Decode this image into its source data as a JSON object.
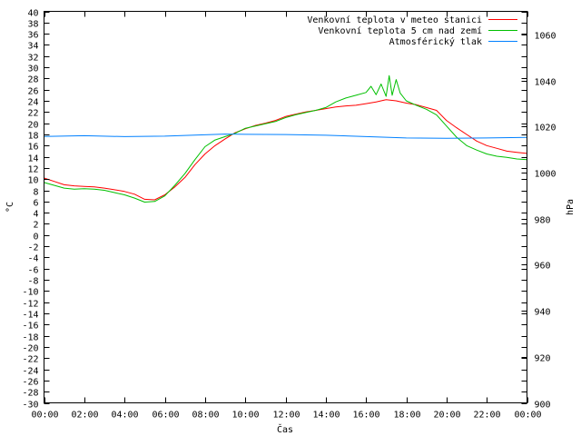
{
  "chart_data": {
    "type": "line",
    "xlabel": "Čas",
    "ylabel": "°C",
    "y2label": "hPa",
    "x_ticks": [
      "00:00",
      "02:00",
      "04:00",
      "06:00",
      "08:00",
      "10:00",
      "12:00",
      "14:00",
      "16:00",
      "18:00",
      "20:00",
      "22:00",
      "00:00"
    ],
    "xlim_hours": [
      0,
      24
    ],
    "ylim": [
      -30,
      40
    ],
    "y_tick_step": 2,
    "y2lim": [
      900,
      1070
    ],
    "y2_ticks": [
      900,
      920,
      940,
      960,
      980,
      1000,
      1020,
      1040,
      1060
    ],
    "legend_position": "top-right",
    "series": [
      {
        "name": "Venkovní teplota v meteo stanici",
        "color": "#ff0000",
        "axis": "left",
        "x": [
          0,
          0.5,
          1,
          1.5,
          2,
          2.5,
          3,
          3.5,
          4,
          4.5,
          5,
          5.5,
          6,
          6.5,
          7,
          7.5,
          8,
          8.5,
          9,
          9.5,
          10,
          10.5,
          11,
          11.5,
          12,
          12.5,
          13,
          13.5,
          14,
          14.5,
          15,
          15.5,
          16,
          16.5,
          17,
          17.5,
          18,
          18.5,
          19,
          19.5,
          20,
          20.5,
          21,
          21.5,
          22,
          22.5,
          23,
          23.5,
          24
        ],
        "values": [
          10.2,
          9.6,
          9.0,
          8.8,
          8.7,
          8.6,
          8.4,
          8.1,
          7.8,
          7.3,
          6.4,
          6.3,
          7.2,
          8.6,
          10.3,
          12.6,
          14.5,
          16.0,
          17.2,
          18.3,
          19.0,
          19.6,
          20.0,
          20.5,
          21.2,
          21.6,
          22.0,
          22.3,
          22.6,
          22.9,
          23.1,
          23.2,
          23.5,
          23.8,
          24.2,
          24.0,
          23.6,
          23.3,
          22.8,
          22.3,
          20.5,
          19.2,
          18.0,
          16.8,
          16.0,
          15.5,
          15.0,
          14.8,
          14.6
        ]
      },
      {
        "name": "Venkovní teplota 5 cm nad zemí",
        "color": "#00c000",
        "axis": "left",
        "x": [
          0,
          0.5,
          1,
          1.5,
          2,
          2.5,
          3,
          3.5,
          4,
          4.5,
          5,
          5.5,
          6,
          6.5,
          7,
          7.5,
          8,
          8.5,
          9,
          9.5,
          10,
          10.5,
          11,
          11.5,
          12,
          12.5,
          13,
          13.5,
          14,
          14.5,
          15,
          15.5,
          16,
          16.25,
          16.5,
          16.75,
          17,
          17.15,
          17.3,
          17.5,
          17.7,
          18,
          18.5,
          19,
          19.5,
          20,
          20.5,
          21,
          21.5,
          22,
          22.5,
          23,
          23.5,
          24
        ],
        "values": [
          9.4,
          8.9,
          8.4,
          8.2,
          8.3,
          8.2,
          8.0,
          7.6,
          7.2,
          6.6,
          5.9,
          6.0,
          7.0,
          8.9,
          11.0,
          13.5,
          15.8,
          17.0,
          17.6,
          18.2,
          19.1,
          19.5,
          19.9,
          20.3,
          21.0,
          21.5,
          21.9,
          22.3,
          22.8,
          23.8,
          24.5,
          25.0,
          25.5,
          26.6,
          25.1,
          27.0,
          24.8,
          28.5,
          25.0,
          27.8,
          25.4,
          24.0,
          23.2,
          22.5,
          21.5,
          19.5,
          17.5,
          16.0,
          15.2,
          14.5,
          14.1,
          13.9,
          13.6,
          13.5
        ]
      },
      {
        "name": "Atmosférický tlak",
        "color": "#0080ff",
        "axis": "right",
        "x": [
          0,
          2,
          4,
          6,
          8,
          9,
          10,
          12,
          14,
          16,
          18,
          20,
          22,
          24
        ],
        "values": [
          1015.7,
          1016.0,
          1015.6,
          1015.8,
          1016.4,
          1016.7,
          1016.6,
          1016.5,
          1016.2,
          1015.6,
          1015.0,
          1014.9,
          1015.0,
          1015.3
        ]
      }
    ]
  }
}
